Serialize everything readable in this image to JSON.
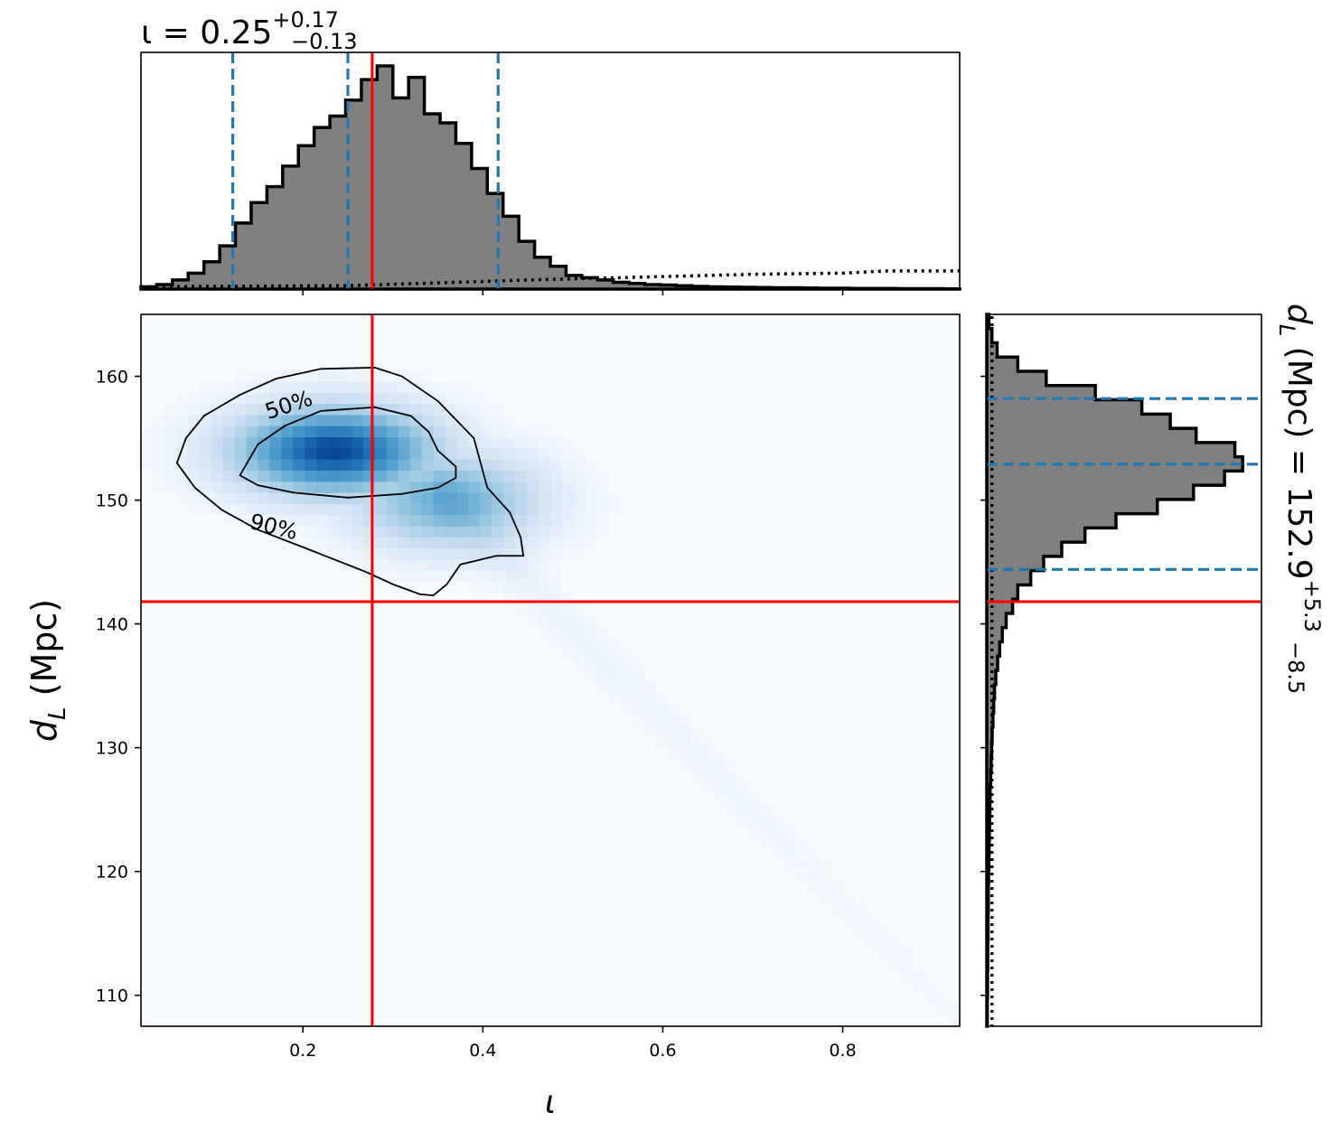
{
  "chart_data": [
    {
      "panel": "iota-marginal",
      "type": "histogram",
      "title": {
        "base": "ι = 0.25",
        "sup": "+0.17",
        "sub": "−0.13"
      },
      "xlim": [
        0.02,
        0.93
      ],
      "bin_edges_start": 0.02,
      "bin_width": 0.0175,
      "posterior_heights": [
        0.01,
        0.02,
        0.04,
        0.07,
        0.12,
        0.19,
        0.29,
        0.38,
        0.45,
        0.54,
        0.63,
        0.71,
        0.76,
        0.83,
        0.92,
        0.98,
        0.84,
        0.93,
        0.77,
        0.73,
        0.64,
        0.53,
        0.42,
        0.32,
        0.21,
        0.14,
        0.1,
        0.06,
        0.05,
        0.04,
        0.03,
        0.025,
        0.02,
        0.018,
        0.015,
        0.012,
        0.01,
        0.009,
        0.008,
        0.007,
        0.006,
        0.006,
        0.005,
        0.004,
        0.004,
        0.003,
        0.003,
        0.003,
        0.002,
        0.002,
        0.002,
        0.001
      ],
      "prior_dotted": {
        "x": [
          0.02,
          0.25,
          0.45,
          0.6,
          0.7,
          0.8,
          0.85,
          0.93
        ],
        "y": [
          0.01,
          0.015,
          0.04,
          0.055,
          0.065,
          0.07,
          0.08,
          0.08
        ]
      },
      "credible_lines": [
        0.122,
        0.25,
        0.417
      ],
      "true_value": 0.277
    },
    {
      "panel": "joint",
      "type": "heatmap",
      "xlabel": "ι",
      "ylabel": {
        "base": "d",
        "sub": "L",
        "unit": " (Mpc)"
      },
      "xlim": [
        0.02,
        0.93
      ],
      "ylim": [
        107.5,
        165
      ],
      "xticks": [
        0.2,
        0.4,
        0.6,
        0.8
      ],
      "xtick_labels": [
        "0.2",
        "0.4",
        "0.6",
        "0.8"
      ],
      "yticks": [
        110,
        120,
        130,
        140,
        150,
        160
      ],
      "ytick_labels": [
        "110",
        "120",
        "130",
        "140",
        "150",
        "160"
      ],
      "density_peak": {
        "iota": 0.235,
        "dL": 154.0
      },
      "contour_labels": [
        "50%",
        "90%"
      ],
      "contour_50": [
        [
          0.13,
          152.0
        ],
        [
          0.15,
          154.5
        ],
        [
          0.18,
          156.0
        ],
        [
          0.22,
          157.2
        ],
        [
          0.28,
          157.5
        ],
        [
          0.32,
          156.8
        ],
        [
          0.34,
          155.5
        ],
        [
          0.35,
          154.0
        ],
        [
          0.37,
          152.7
        ],
        [
          0.37,
          151.8
        ],
        [
          0.35,
          151.0
        ],
        [
          0.31,
          150.5
        ],
        [
          0.25,
          150.2
        ],
        [
          0.19,
          150.6
        ],
        [
          0.15,
          151.2
        ],
        [
          0.13,
          152.0
        ]
      ],
      "contour_90": [
        [
          0.06,
          153.0
        ],
        [
          0.07,
          155.0
        ],
        [
          0.09,
          156.8
        ],
        [
          0.13,
          158.5
        ],
        [
          0.17,
          159.8
        ],
        [
          0.22,
          160.6
        ],
        [
          0.28,
          160.7
        ],
        [
          0.31,
          160.0
        ],
        [
          0.35,
          158.0
        ],
        [
          0.39,
          155.0
        ],
        [
          0.405,
          151.0
        ],
        [
          0.43,
          149.0
        ],
        [
          0.442,
          147.0
        ],
        [
          0.445,
          145.5
        ],
        [
          0.415,
          145.5
        ],
        [
          0.375,
          144.8
        ],
        [
          0.36,
          143.2
        ],
        [
          0.345,
          142.3
        ],
        [
          0.33,
          142.4
        ],
        [
          0.3,
          143.2
        ],
        [
          0.27,
          144.2
        ],
        [
          0.2,
          146.2
        ],
        [
          0.15,
          147.6
        ],
        [
          0.11,
          149.2
        ],
        [
          0.08,
          151.0
        ],
        [
          0.06,
          153.0
        ]
      ],
      "true_value": {
        "iota": 0.277,
        "dL": 141.8
      }
    },
    {
      "panel": "dL-marginal",
      "type": "histogram",
      "orientation": "horizontal",
      "title": {
        "base": "d",
        "sub": "L",
        "rest": " (Mpc) = 152.9",
        "sup": "+5.3",
        "sub2": "−8.5"
      },
      "ylim": [
        107.5,
        165
      ],
      "bin_edges_start": 107.5,
      "bin_width": 1.15,
      "posterior_widths": [
        0.002,
        0.002,
        0.003,
        0.003,
        0.004,
        0.004,
        0.005,
        0.005,
        0.006,
        0.006,
        0.007,
        0.008,
        0.009,
        0.01,
        0.011,
        0.012,
        0.013,
        0.015,
        0.017,
        0.019,
        0.021,
        0.024,
        0.027,
        0.03,
        0.035,
        0.042,
        0.05,
        0.06,
        0.075,
        0.1,
        0.12,
        0.17,
        0.22,
        0.29,
        0.38,
        0.5,
        0.66,
        0.8,
        0.92,
        0.99,
        0.96,
        0.81,
        0.71,
        0.6,
        0.42,
        0.23,
        0.12,
        0.04,
        0.02,
        0.008
      ],
      "prior_dotted_width": 0.02,
      "credible_lines": [
        144.4,
        152.9,
        158.2
      ],
      "true_value": 141.8
    }
  ]
}
